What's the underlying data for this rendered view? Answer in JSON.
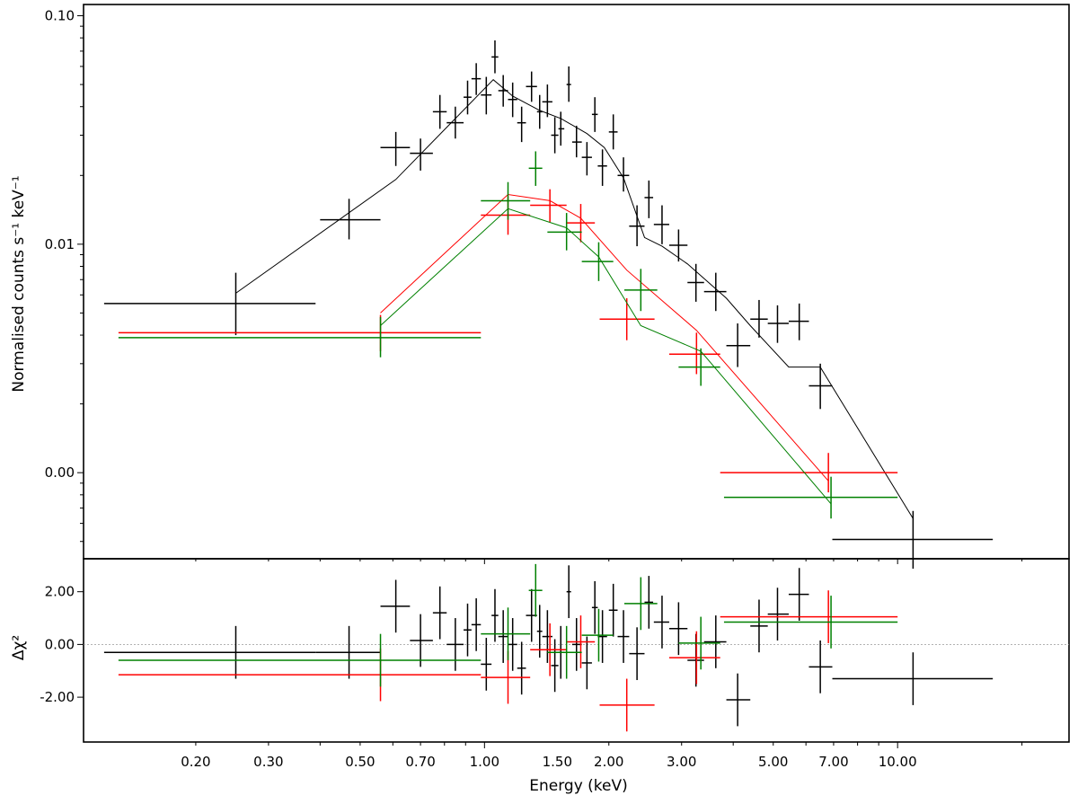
{
  "chart_data": [
    {
      "panel": "spectrum",
      "type": "scatter",
      "xscale": "log",
      "yscale": "log",
      "xlim": [
        0.107,
        26.0
      ],
      "ylim": [
        0.00042,
        0.112
      ],
      "ylabel": "Normalised counts s⁻¹ keV⁻¹",
      "yticks": [
        0.01,
        0.1
      ],
      "ytick_labels": [
        "0.01",
        "0.10"
      ],
      "extra_ytick": {
        "value": 0.001,
        "label": "0.00"
      },
      "colors": {
        "black": "#000000",
        "red": "#ff0000",
        "green": "#008000"
      },
      "series": [
        {
          "color": "black",
          "points": [
            [
              0.25,
              0.0055,
              0.12,
              0.39,
              0.004,
              0.0075
            ],
            [
              0.47,
              0.0128,
              0.4,
              0.56,
              0.0105,
              0.0158
            ],
            [
              0.61,
              0.0265,
              0.56,
              0.66,
              0.022,
              0.031
            ],
            [
              0.7,
              0.025,
              0.66,
              0.75,
              0.021,
              0.029
            ],
            [
              0.78,
              0.038,
              0.75,
              0.81,
              0.032,
              0.045
            ],
            [
              0.85,
              0.034,
              0.81,
              0.89,
              0.029,
              0.04
            ],
            [
              0.91,
              0.044,
              0.89,
              0.93,
              0.037,
              0.052
            ],
            [
              0.955,
              0.053,
              0.93,
              0.98,
              0.045,
              0.062
            ],
            [
              1.01,
              0.045,
              0.98,
              1.04,
              0.037,
              0.054
            ],
            [
              1.06,
              0.066,
              1.04,
              1.08,
              0.056,
              0.078
            ],
            [
              1.11,
              0.047,
              1.08,
              1.14,
              0.04,
              0.055
            ],
            [
              1.17,
              0.043,
              1.14,
              1.2,
              0.036,
              0.051
            ],
            [
              1.23,
              0.034,
              1.2,
              1.26,
              0.028,
              0.04
            ],
            [
              1.3,
              0.049,
              1.26,
              1.34,
              0.042,
              0.057
            ],
            [
              1.36,
              0.038,
              1.34,
              1.38,
              0.032,
              0.045
            ],
            [
              1.42,
              0.042,
              1.38,
              1.46,
              0.036,
              0.05
            ],
            [
              1.48,
              0.03,
              1.45,
              1.51,
              0.025,
              0.036
            ],
            [
              1.53,
              0.032,
              1.51,
              1.56,
              0.027,
              0.038
            ],
            [
              1.6,
              0.05,
              1.58,
              1.62,
              0.042,
              0.06
            ],
            [
              1.67,
              0.028,
              1.63,
              1.72,
              0.024,
              0.033
            ],
            [
              1.77,
              0.024,
              1.72,
              1.82,
              0.02,
              0.028
            ],
            [
              1.85,
              0.037,
              1.82,
              1.88,
              0.031,
              0.044
            ],
            [
              1.93,
              0.022,
              1.88,
              1.98,
              0.018,
              0.026
            ],
            [
              2.05,
              0.031,
              2.0,
              2.1,
              0.026,
              0.037
            ],
            [
              2.17,
              0.02,
              2.1,
              2.24,
              0.017,
              0.024
            ],
            [
              2.34,
              0.012,
              2.24,
              2.44,
              0.0098,
              0.0148
            ],
            [
              2.5,
              0.016,
              2.44,
              2.56,
              0.013,
              0.019
            ],
            [
              2.69,
              0.0122,
              2.57,
              2.8,
              0.01,
              0.0148
            ],
            [
              2.95,
              0.0099,
              2.8,
              3.1,
              0.0084,
              0.0116
            ],
            [
              3.25,
              0.0068,
              3.1,
              3.4,
              0.0056,
              0.0082
            ],
            [
              3.63,
              0.0062,
              3.4,
              3.85,
              0.0051,
              0.0075
            ],
            [
              4.1,
              0.0036,
              3.85,
              4.4,
              0.0029,
              0.0045
            ],
            [
              4.62,
              0.0047,
              4.4,
              4.85,
              0.0039,
              0.0057
            ],
            [
              5.12,
              0.0045,
              4.85,
              5.45,
              0.0037,
              0.0054
            ],
            [
              5.78,
              0.0046,
              5.45,
              6.1,
              0.0038,
              0.0055
            ],
            [
              6.5,
              0.0024,
              6.1,
              6.95,
              0.0019,
              0.003
            ],
            [
              10.9,
              0.00051,
              6.95,
              17.0,
              0.00038,
              0.00068
            ]
          ],
          "model": [
            [
              0.25,
              0.0061
            ],
            [
              0.61,
              0.0192
            ],
            [
              1.05,
              0.0525
            ],
            [
              1.17,
              0.0445
            ],
            [
              1.36,
              0.0385
            ],
            [
              1.53,
              0.0355
            ],
            [
              1.77,
              0.0305
            ],
            [
              1.95,
              0.0265
            ],
            [
              2.17,
              0.0195
            ],
            [
              2.44,
              0.0107
            ],
            [
              2.69,
              0.0098
            ],
            [
              3.1,
              0.0082
            ],
            [
              3.85,
              0.0058
            ],
            [
              4.4,
              0.0044
            ],
            [
              5.45,
              0.0029
            ],
            [
              6.5,
              0.0029
            ],
            [
              10.9,
              0.00063
            ]
          ]
        },
        {
          "color": "red",
          "points": [
            [
              0.56,
              0.0041,
              0.13,
              0.98,
              0.0034,
              0.0049
            ],
            [
              1.14,
              0.0134,
              0.98,
              1.29,
              0.011,
              0.0162
            ],
            [
              1.44,
              0.0148,
              1.29,
              1.58,
              0.0125,
              0.0174
            ],
            [
              1.71,
              0.0124,
              1.58,
              1.85,
              0.0102,
              0.015
            ],
            [
              2.21,
              0.0047,
              1.9,
              2.58,
              0.0038,
              0.0058
            ],
            [
              3.26,
              0.0033,
              2.8,
              3.72,
              0.0027,
              0.0041
            ],
            [
              6.8,
              0.001,
              3.72,
              10.0,
              0.00082,
              0.00122
            ]
          ],
          "model": [
            [
              0.56,
              0.005
            ],
            [
              1.14,
              0.0165
            ],
            [
              1.44,
              0.0155
            ],
            [
              1.71,
              0.013
            ],
            [
              2.21,
              0.0077
            ],
            [
              3.26,
              0.0042
            ],
            [
              6.8,
              0.00092
            ]
          ]
        },
        {
          "color": "green",
          "points": [
            [
              0.56,
              0.0039,
              0.13,
              0.98,
              0.0032,
              0.0048
            ],
            [
              1.14,
              0.0155,
              0.98,
              1.29,
              0.0128,
              0.0187
            ],
            [
              1.33,
              0.0215,
              1.28,
              1.38,
              0.018,
              0.0255
            ],
            [
              1.58,
              0.0113,
              1.42,
              1.72,
              0.0094,
              0.0137
            ],
            [
              1.89,
              0.0084,
              1.72,
              2.05,
              0.0069,
              0.0102
            ],
            [
              2.39,
              0.0063,
              2.18,
              2.62,
              0.0051,
              0.0078
            ],
            [
              3.34,
              0.0029,
              2.95,
              3.72,
              0.0024,
              0.0035
            ],
            [
              6.9,
              0.00078,
              3.8,
              10.0,
              0.00063,
              0.00096
            ]
          ],
          "model": [
            [
              0.56,
              0.0044
            ],
            [
              1.14,
              0.0143
            ],
            [
              1.58,
              0.0118
            ],
            [
              1.89,
              0.0088
            ],
            [
              2.39,
              0.0044
            ],
            [
              3.34,
              0.0034
            ],
            [
              6.9,
              0.00073
            ]
          ]
        }
      ]
    },
    {
      "panel": "residuals",
      "type": "scatter",
      "xscale": "log",
      "yscale": "linear",
      "xlim": [
        0.107,
        26.0
      ],
      "ylim": [
        -3.7,
        3.25
      ],
      "ylabel": "Δχ²",
      "yticks": [
        -2,
        0,
        2
      ],
      "ytick_labels": [
        "-2.00",
        "0.00",
        "2.00"
      ],
      "zero_line": true,
      "xlabel": "Energy (keV)",
      "xticks": [
        0.2,
        0.3,
        0.5,
        0.7,
        1.0,
        1.5,
        2.0,
        3.0,
        5.0,
        7.0,
        10.0
      ],
      "xtick_labels": [
        "0.20",
        "0.30",
        "0.50",
        "0.70",
        "1.00",
        "1.50",
        "2.00",
        "3.00",
        "5.00",
        "7.00",
        "10.00"
      ],
      "colors": {
        "black": "#000000",
        "red": "#ff0000",
        "green": "#008000"
      },
      "series": [
        {
          "color": "black",
          "points": [
            [
              0.25,
              -0.3,
              0.12,
              0.39,
              -1.3,
              0.7
            ],
            [
              0.47,
              -0.3,
              0.39,
              0.56,
              -1.3,
              0.7
            ],
            [
              0.61,
              1.45,
              0.56,
              0.66,
              0.45,
              2.45
            ],
            [
              0.7,
              0.15,
              0.66,
              0.75,
              -0.85,
              1.15
            ],
            [
              0.78,
              1.2,
              0.75,
              0.81,
              0.2,
              2.2
            ],
            [
              0.85,
              0.0,
              0.81,
              0.89,
              -1.0,
              1.0
            ],
            [
              0.91,
              0.55,
              0.89,
              0.93,
              -0.45,
              1.55
            ],
            [
              0.955,
              0.75,
              0.93,
              0.98,
              -0.25,
              1.75
            ],
            [
              1.01,
              -0.75,
              0.98,
              1.04,
              -1.75,
              0.25
            ],
            [
              1.06,
              1.1,
              1.04,
              1.08,
              0.1,
              2.1
            ],
            [
              1.11,
              0.3,
              1.08,
              1.14,
              -0.7,
              1.3
            ],
            [
              1.17,
              0.0,
              1.14,
              1.2,
              -1.0,
              1.0
            ],
            [
              1.23,
              -0.9,
              1.2,
              1.26,
              -1.9,
              0.1
            ],
            [
              1.3,
              1.1,
              1.26,
              1.34,
              0.1,
              2.1
            ],
            [
              1.36,
              0.5,
              1.34,
              1.38,
              -0.5,
              1.5
            ],
            [
              1.42,
              0.3,
              1.38,
              1.46,
              -0.7,
              1.3
            ],
            [
              1.48,
              -0.8,
              1.45,
              1.51,
              -1.8,
              0.2
            ],
            [
              1.53,
              -0.3,
              1.51,
              1.56,
              -1.3,
              0.7
            ],
            [
              1.6,
              2.0,
              1.58,
              1.62,
              1.0,
              3.0
            ],
            [
              1.67,
              0.0,
              1.63,
              1.72,
              -1.0,
              1.0
            ],
            [
              1.77,
              -0.7,
              1.72,
              1.82,
              -1.7,
              0.3
            ],
            [
              1.85,
              1.4,
              1.82,
              1.88,
              0.4,
              2.4
            ],
            [
              1.93,
              0.3,
              1.88,
              1.98,
              -0.7,
              1.3
            ],
            [
              2.05,
              1.3,
              2.0,
              2.1,
              0.3,
              2.3
            ],
            [
              2.17,
              0.3,
              2.1,
              2.24,
              -0.7,
              1.3
            ],
            [
              2.34,
              -0.35,
              2.24,
              2.44,
              -1.35,
              0.65
            ],
            [
              2.5,
              1.6,
              2.44,
              2.56,
              0.6,
              2.6
            ],
            [
              2.69,
              0.85,
              2.57,
              2.8,
              -0.15,
              1.85
            ],
            [
              2.95,
              0.6,
              2.8,
              3.1,
              -0.4,
              1.6
            ],
            [
              3.25,
              -0.6,
              3.1,
              3.4,
              -1.6,
              0.4
            ],
            [
              3.63,
              0.1,
              3.4,
              3.85,
              -0.9,
              1.1
            ],
            [
              4.1,
              -2.1,
              3.85,
              4.4,
              -3.1,
              -1.1
            ],
            [
              4.62,
              0.7,
              4.4,
              4.85,
              -0.3,
              1.7
            ],
            [
              5.12,
              1.15,
              4.85,
              5.45,
              0.15,
              2.15
            ],
            [
              5.78,
              1.9,
              5.45,
              6.1,
              0.9,
              2.9
            ],
            [
              6.5,
              -0.85,
              6.1,
              6.95,
              -1.85,
              0.15
            ],
            [
              10.9,
              -1.3,
              6.95,
              17.0,
              -2.3,
              -0.3
            ]
          ]
        },
        {
          "color": "red",
          "points": [
            [
              0.56,
              -1.15,
              0.13,
              0.98,
              -2.15,
              -0.15
            ],
            [
              1.14,
              -1.25,
              0.98,
              1.29,
              -2.25,
              -0.25
            ],
            [
              1.44,
              -0.2,
              1.29,
              1.58,
              -1.2,
              0.8
            ],
            [
              1.71,
              0.1,
              1.58,
              1.85,
              -0.9,
              1.1
            ],
            [
              2.21,
              -2.3,
              1.9,
              2.58,
              -3.3,
              -1.3
            ],
            [
              3.26,
              -0.5,
              2.8,
              3.72,
              -1.5,
              0.5
            ],
            [
              6.8,
              1.05,
              3.72,
              10.0,
              0.05,
              2.05
            ]
          ]
        },
        {
          "color": "green",
          "points": [
            [
              0.56,
              -0.6,
              0.13,
              0.98,
              -1.6,
              0.4
            ],
            [
              1.14,
              0.4,
              0.98,
              1.29,
              -0.6,
              1.4
            ],
            [
              1.33,
              2.05,
              1.28,
              1.38,
              1.05,
              3.05
            ],
            [
              1.58,
              -0.3,
              1.42,
              1.72,
              -1.3,
              0.7
            ],
            [
              1.89,
              0.35,
              1.72,
              2.05,
              -0.65,
              1.35
            ],
            [
              2.39,
              1.55,
              2.18,
              2.62,
              0.55,
              2.55
            ],
            [
              3.34,
              0.05,
              2.95,
              3.72,
              -0.95,
              1.05
            ],
            [
              6.9,
              0.85,
              3.8,
              10.0,
              -0.15,
              1.85
            ]
          ]
        }
      ]
    }
  ]
}
